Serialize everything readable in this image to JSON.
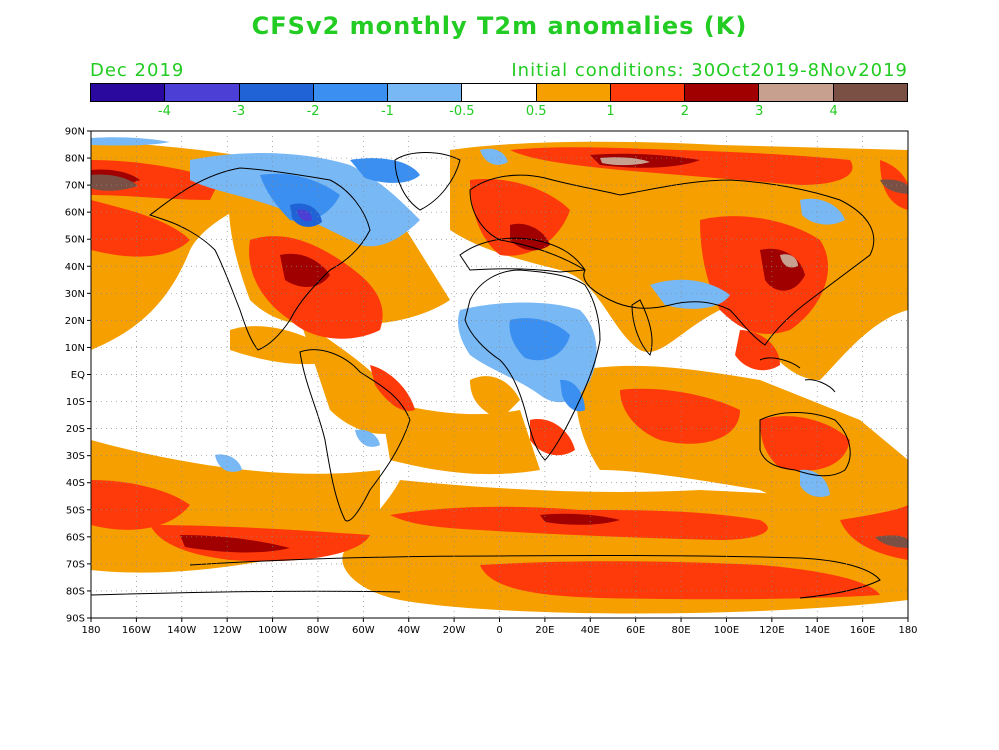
{
  "title": "CFSv2 monthly T2m anomalies (K)",
  "valid_month": "Dec 2019",
  "initial_conditions": "Initial conditions: 30Oct2019-8Nov2019",
  "colorbar": {
    "colors": [
      "#2a0a9e",
      "#4b3fd6",
      "#1f63d6",
      "#3a8ff0",
      "#78b8f5",
      "#ffffff",
      "#f5a000",
      "#ff3a0a",
      "#a00000",
      "#c8a090",
      "#7a5044"
    ],
    "labels": [
      "-4",
      "-3",
      "-2",
      "-1",
      "-0.5",
      "0.5",
      "1",
      "2",
      "3",
      "4"
    ]
  },
  "map": {
    "lat_labels": [
      "90N",
      "80N",
      "70N",
      "60N",
      "50N",
      "40N",
      "30N",
      "20N",
      "10N",
      "EQ",
      "10S",
      "20S",
      "30S",
      "40S",
      "50S",
      "60S",
      "70S",
      "80S",
      "90S"
    ],
    "lon_labels": [
      "180",
      "160W",
      "140W",
      "120W",
      "100W",
      "80W",
      "60W",
      "40W",
      "20W",
      "0",
      "20E",
      "40E",
      "60E",
      "80E",
      "100E",
      "120E",
      "140E",
      "160E",
      "180"
    ]
  }
}
